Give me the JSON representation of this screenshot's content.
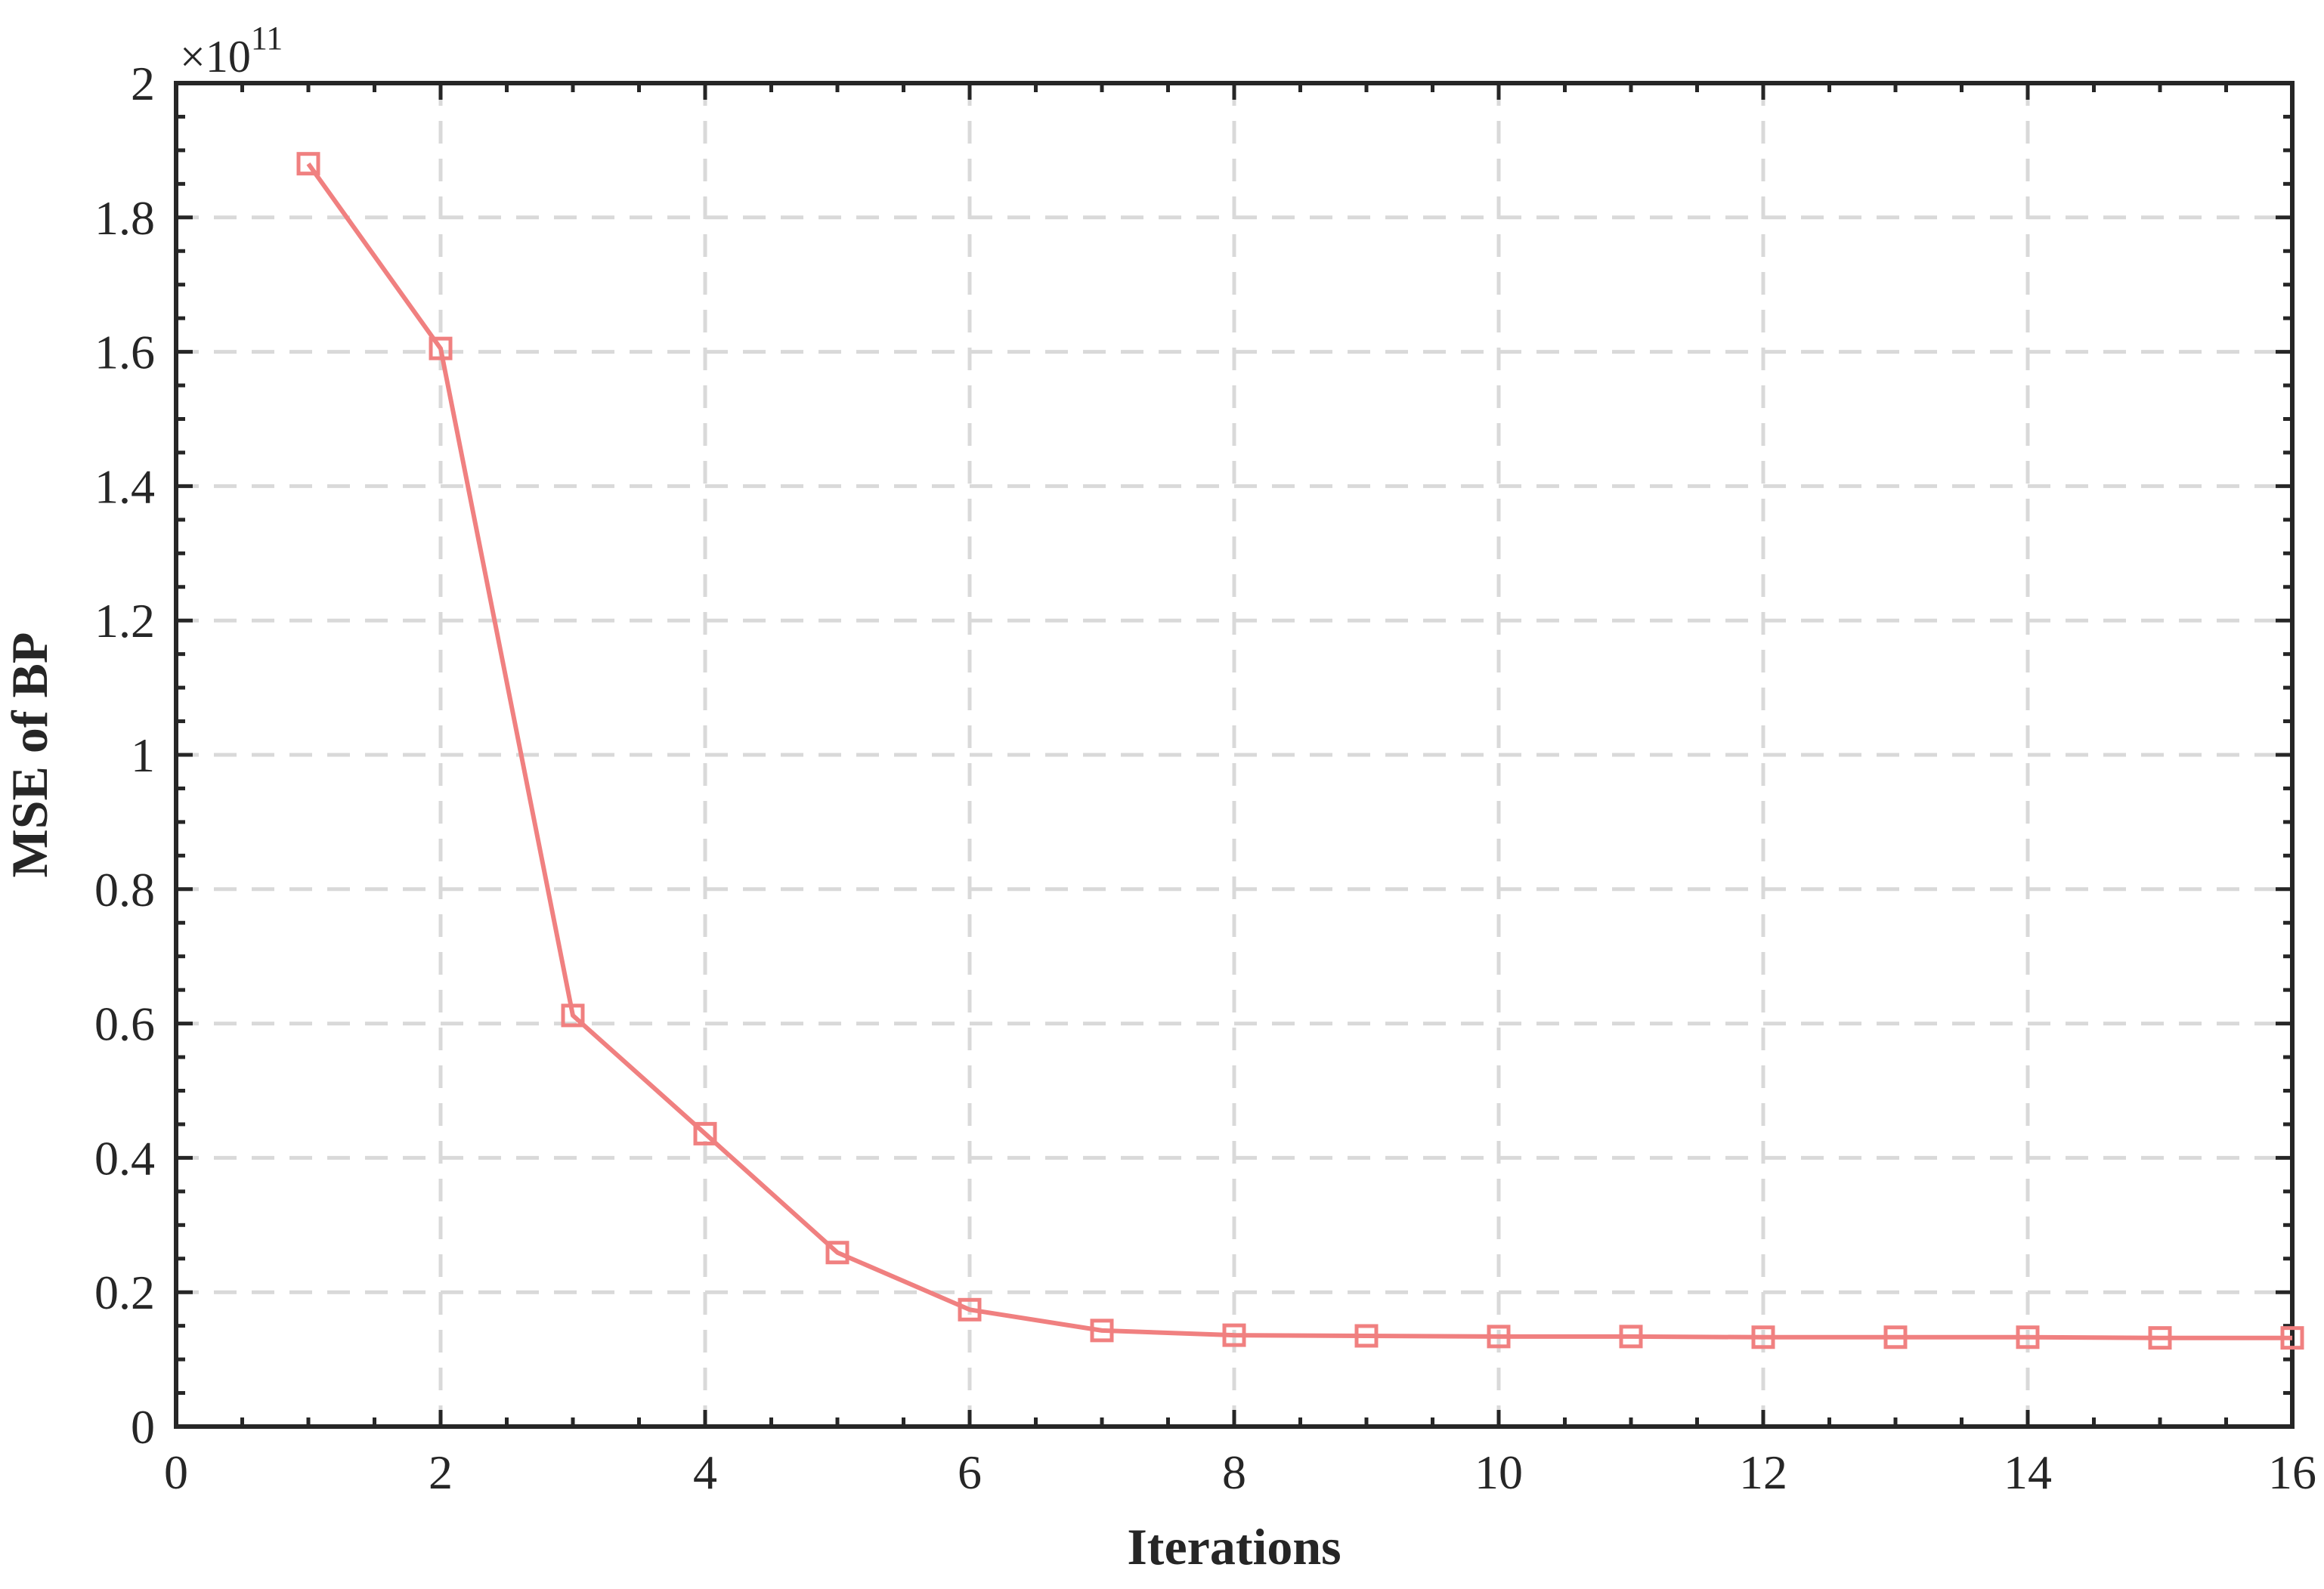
{
  "chart_data": {
    "type": "line",
    "xlabel": "Iterations",
    "ylabel": "MSE of BP",
    "y_exponent_label": "×10",
    "y_exponent_power": "11",
    "xlim": [
      0,
      16
    ],
    "ylim": [
      0,
      2
    ],
    "x_ticks": [
      0,
      2,
      4,
      6,
      8,
      10,
      12,
      14,
      16
    ],
    "y_ticks": [
      0,
      0.2,
      0.4,
      0.6,
      0.8,
      1,
      1.2,
      1.4,
      1.6,
      1.8,
      2
    ],
    "x_tick_labels": [
      "0",
      "2",
      "4",
      "6",
      "8",
      "10",
      "12",
      "14",
      "16"
    ],
    "y_tick_labels": [
      "0",
      "0.2",
      "0.4",
      "0.6",
      "0.8",
      "1",
      "1.2",
      "1.4",
      "1.6",
      "1.8",
      "2"
    ],
    "grid": true,
    "grid_style": "dashed",
    "legend": "none",
    "series": [
      {
        "marker": "square",
        "color": "#F08080",
        "x": [
          1,
          2,
          3,
          4,
          5,
          6,
          7,
          8,
          9,
          10,
          11,
          12,
          13,
          14,
          15,
          16
        ],
        "y": [
          1.88,
          1.605,
          0.612,
          0.436,
          0.259,
          0.174,
          0.143,
          0.136,
          0.135,
          0.134,
          0.134,
          0.133,
          0.133,
          0.133,
          0.132,
          0.132
        ]
      }
    ]
  },
  "colors": {
    "axis": "#262626",
    "grid": "#D9D9D9",
    "series": "#F08080"
  }
}
